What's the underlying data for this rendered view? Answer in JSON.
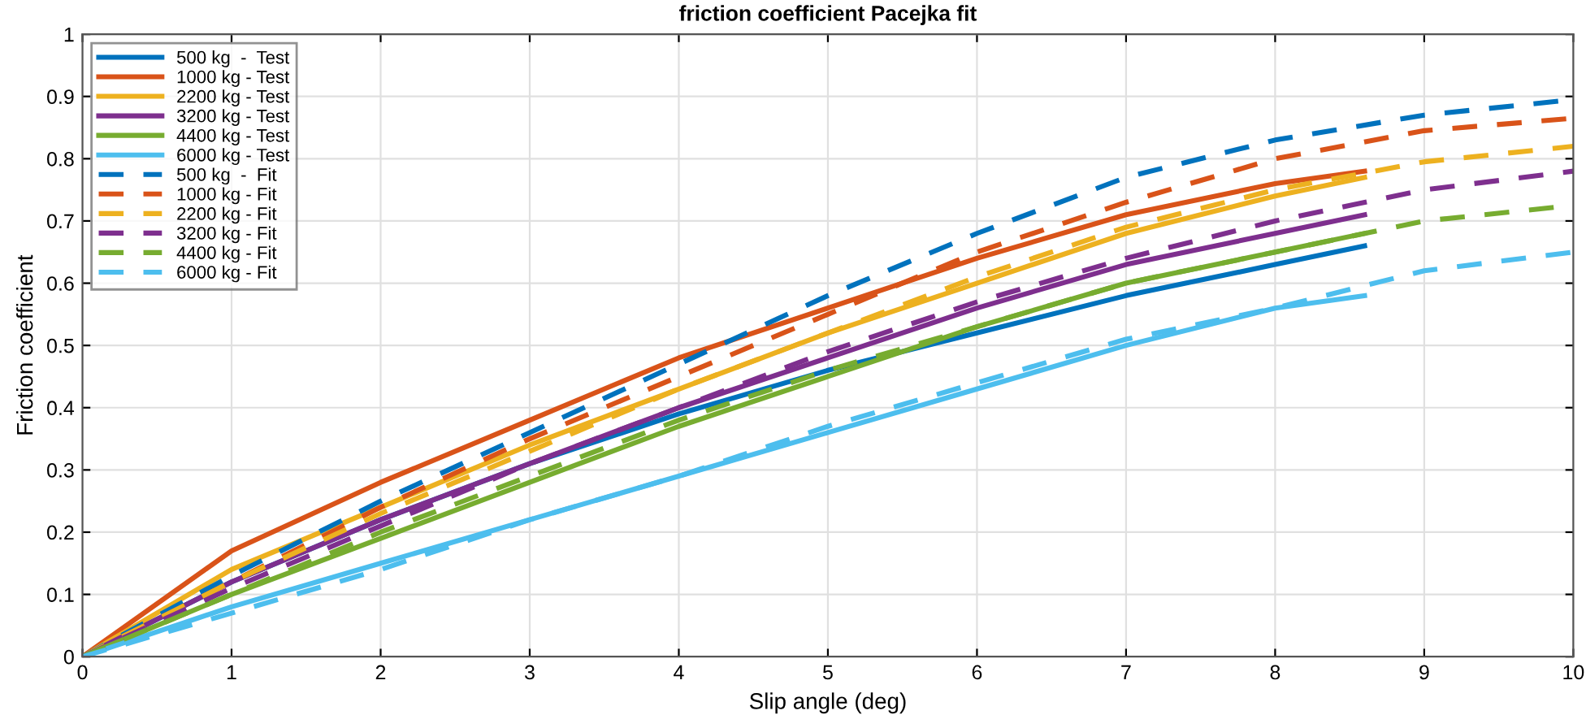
{
  "chart_data": {
    "type": "line",
    "title": "friction coefficient Pacejka fit",
    "xlabel": "Slip angle (deg)",
    "ylabel": "Friction coefficient",
    "xlim": [
      0,
      10
    ],
    "ylim": [
      0,
      1
    ],
    "xticks": [
      0,
      1,
      2,
      3,
      4,
      5,
      6,
      7,
      8,
      9,
      10
    ],
    "yticks": [
      0,
      0.1,
      0.2,
      0.3,
      0.4,
      0.5,
      0.6,
      0.7,
      0.8,
      0.9,
      1
    ],
    "grid": true,
    "legend": "top left",
    "marker": "none",
    "series": [
      {
        "name": "500 kg  -  Test",
        "color": "#0072bd",
        "line_style": "solid",
        "x": [
          0,
          1,
          2,
          3,
          4,
          5,
          6,
          7,
          8,
          8.6
        ],
        "values": [
          0,
          0.12,
          0.22,
          0.31,
          0.39,
          0.46,
          0.52,
          0.58,
          0.63,
          0.66
        ]
      },
      {
        "name": "1000 kg - Test",
        "color": "#d95319",
        "line_style": "solid",
        "x": [
          0,
          1,
          2,
          3,
          4,
          5,
          6,
          7,
          8,
          8.6
        ],
        "values": [
          0,
          0.17,
          0.28,
          0.38,
          0.48,
          0.56,
          0.64,
          0.71,
          0.76,
          0.78
        ]
      },
      {
        "name": "2200 kg - Test",
        "color": "#edb120",
        "line_style": "solid",
        "x": [
          0,
          1,
          2,
          3,
          4,
          5,
          6,
          7,
          8,
          8.6
        ],
        "values": [
          0,
          0.14,
          0.24,
          0.34,
          0.43,
          0.52,
          0.6,
          0.68,
          0.74,
          0.77
        ]
      },
      {
        "name": "3200 kg - Test",
        "color": "#7e2f8e",
        "line_style": "solid",
        "x": [
          0,
          1,
          2,
          3,
          4,
          5,
          6,
          7,
          8,
          8.6
        ],
        "values": [
          0,
          0.12,
          0.22,
          0.31,
          0.4,
          0.48,
          0.56,
          0.63,
          0.68,
          0.71
        ]
      },
      {
        "name": "4400 kg - Test",
        "color": "#77ac30",
        "line_style": "solid",
        "x": [
          0,
          1,
          2,
          3,
          4,
          5,
          6,
          7,
          8,
          8.6
        ],
        "values": [
          0,
          0.1,
          0.19,
          0.28,
          0.37,
          0.45,
          0.53,
          0.6,
          0.65,
          0.68
        ]
      },
      {
        "name": "6000 kg - Test",
        "color": "#4dbeee",
        "line_style": "solid",
        "x": [
          0,
          1,
          2,
          3,
          4,
          5,
          6,
          7,
          8,
          8.6
        ],
        "values": [
          0,
          0.08,
          0.15,
          0.22,
          0.29,
          0.36,
          0.43,
          0.5,
          0.56,
          0.58
        ]
      },
      {
        "name": "500 kg  -  Fit",
        "color": "#0072bd",
        "line_style": "dashed",
        "x": [
          0,
          1,
          2,
          3,
          4,
          5,
          6,
          7,
          8,
          9,
          10
        ],
        "values": [
          0,
          0.13,
          0.25,
          0.36,
          0.47,
          0.58,
          0.68,
          0.77,
          0.83,
          0.87,
          0.895
        ]
      },
      {
        "name": "1000 kg - Fit",
        "color": "#d95319",
        "line_style": "dashed",
        "x": [
          0,
          1,
          2,
          3,
          4,
          5,
          6,
          7,
          8,
          9,
          10
        ],
        "values": [
          0,
          0.12,
          0.24,
          0.35,
          0.45,
          0.55,
          0.65,
          0.73,
          0.8,
          0.845,
          0.865
        ]
      },
      {
        "name": "2200 kg - Fit",
        "color": "#edb120",
        "line_style": "dashed",
        "x": [
          0,
          1,
          2,
          3,
          4,
          5,
          6,
          7,
          8,
          9,
          10
        ],
        "values": [
          0,
          0.12,
          0.23,
          0.33,
          0.43,
          0.52,
          0.61,
          0.69,
          0.75,
          0.795,
          0.82
        ]
      },
      {
        "name": "3200 kg - Fit",
        "color": "#7e2f8e",
        "line_style": "dashed",
        "x": [
          0,
          1,
          2,
          3,
          4,
          5,
          6,
          7,
          8,
          9,
          10
        ],
        "values": [
          0,
          0.11,
          0.21,
          0.31,
          0.4,
          0.49,
          0.57,
          0.64,
          0.7,
          0.75,
          0.78
        ]
      },
      {
        "name": "4400 kg - Fit",
        "color": "#77ac30",
        "line_style": "dashed",
        "x": [
          0,
          1,
          2,
          3,
          4,
          5,
          6,
          7,
          8,
          9,
          10
        ],
        "values": [
          0,
          0.1,
          0.2,
          0.29,
          0.38,
          0.46,
          0.53,
          0.6,
          0.65,
          0.7,
          0.725
        ]
      },
      {
        "name": "6000 kg - Fit",
        "color": "#4dbeee",
        "line_style": "dashed",
        "x": [
          0,
          1,
          2,
          3,
          4,
          5,
          6,
          7,
          8,
          9,
          10
        ],
        "values": [
          0,
          0.07,
          0.14,
          0.22,
          0.29,
          0.37,
          0.44,
          0.51,
          0.56,
          0.62,
          0.65
        ]
      }
    ]
  }
}
